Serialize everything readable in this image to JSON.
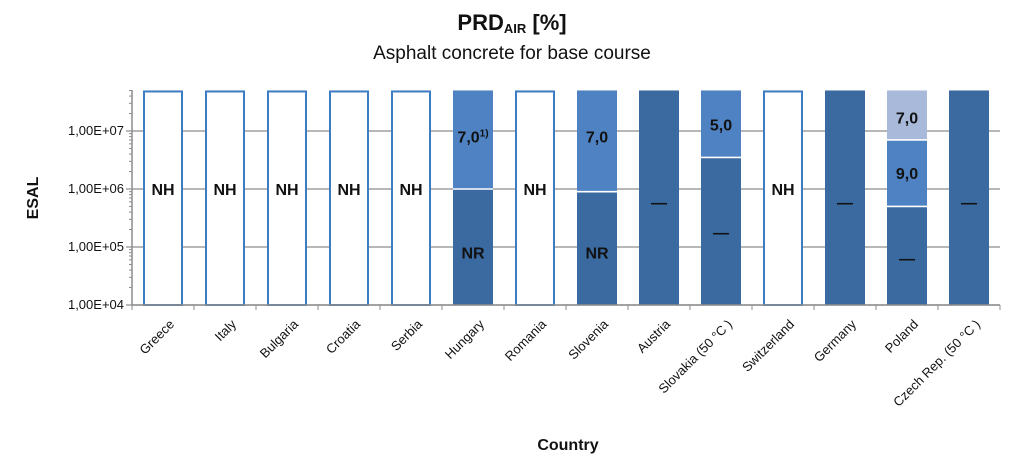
{
  "title_main": "PRD",
  "title_sub": "AIR",
  "title_unit": " [%]",
  "subtitle": "Asphalt concrete for base course",
  "chart_data": {
    "type": "bar",
    "title": "PRD_AIR [%]",
    "subtitle": "Asphalt concrete for base course",
    "xlabel": "Country",
    "ylabel": "ESAL",
    "yscale": "log",
    "ylim": [
      10000,
      50000000
    ],
    "yticks": [
      "1,00E+04",
      "1,00E+05",
      "1,00E+06",
      "1,00E+07"
    ],
    "ytick_values": [
      10000,
      100000,
      1000000,
      10000000
    ],
    "grid": true,
    "colors": {
      "outline": "#3d7cc0",
      "dark": "#3a6aa0",
      "medium": "#4e82c2",
      "light": "#a9b9da",
      "white_line": "#ffffff"
    },
    "categories": [
      "Greece",
      "Italy",
      "Bulgaria",
      "Croatia",
      "Serbia",
      "Hungary",
      "Romania",
      "Slovenia",
      "Austria",
      "Slovakia (50 °C )",
      "Switzerland",
      "Germany",
      "Poland",
      "Czech Rep. (50 °C )"
    ],
    "bars": [
      {
        "category": "Greece",
        "segments": [
          {
            "from": 10000,
            "to": 50000000,
            "style": "outline",
            "label": "NH"
          }
        ]
      },
      {
        "category": "Italy",
        "segments": [
          {
            "from": 10000,
            "to": 50000000,
            "style": "outline",
            "label": "NH"
          }
        ]
      },
      {
        "category": "Bulgaria",
        "segments": [
          {
            "from": 10000,
            "to": 50000000,
            "style": "outline",
            "label": "NH"
          }
        ]
      },
      {
        "category": "Croatia",
        "segments": [
          {
            "from": 10000,
            "to": 50000000,
            "style": "outline",
            "label": "NH"
          }
        ]
      },
      {
        "category": "Serbia",
        "segments": [
          {
            "from": 10000,
            "to": 50000000,
            "style": "outline",
            "label": "NH"
          }
        ]
      },
      {
        "category": "Hungary",
        "segments": [
          {
            "from": 10000,
            "to": 1000000,
            "style": "dark",
            "label": "NR"
          },
          {
            "from": 1000000,
            "to": 50000000,
            "style": "medium",
            "label": "7,0",
            "sup": "1)"
          }
        ]
      },
      {
        "category": "Romania",
        "segments": [
          {
            "from": 10000,
            "to": 50000000,
            "style": "outline",
            "label": "NH"
          }
        ]
      },
      {
        "category": "Slovenia",
        "segments": [
          {
            "from": 10000,
            "to": 900000,
            "style": "dark",
            "label": "NR"
          },
          {
            "from": 900000,
            "to": 50000000,
            "style": "medium",
            "label": "7,0"
          }
        ]
      },
      {
        "category": "Austria",
        "segments": [
          {
            "from": 10000,
            "to": 50000000,
            "style": "dark",
            "label": "—"
          }
        ]
      },
      {
        "category": "Slovakia (50 °C )",
        "segments": [
          {
            "from": 10000,
            "to": 3500000,
            "style": "dark",
            "label": "—"
          },
          {
            "from": 3500000,
            "to": 50000000,
            "style": "medium",
            "label": "5,0"
          }
        ]
      },
      {
        "category": "Switzerland",
        "segments": [
          {
            "from": 10000,
            "to": 50000000,
            "style": "outline",
            "label": "NH"
          }
        ]
      },
      {
        "category": "Germany",
        "segments": [
          {
            "from": 10000,
            "to": 50000000,
            "style": "dark",
            "label": "—"
          }
        ]
      },
      {
        "category": "Poland",
        "segments": [
          {
            "from": 10000,
            "to": 500000,
            "style": "dark",
            "label": "—"
          },
          {
            "from": 500000,
            "to": 7000000,
            "style": "medium",
            "label": "9,0"
          },
          {
            "from": 7000000,
            "to": 50000000,
            "style": "light",
            "label": "7,0"
          }
        ]
      },
      {
        "category": "Czech Rep. (50 °C )",
        "segments": [
          {
            "from": 10000,
            "to": 50000000,
            "style": "dark",
            "label": "—"
          }
        ]
      }
    ]
  }
}
